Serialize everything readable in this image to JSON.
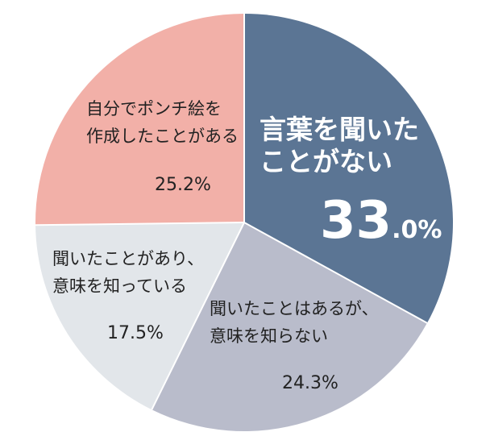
{
  "chart_data": {
    "type": "pie",
    "start_angle_deg": 0,
    "direction": "clockwise",
    "slices": [
      {
        "label_lines": [
          "言葉を聞いた",
          "ことがない"
        ],
        "value": 33.0,
        "value_main": "33",
        "value_decimal": ".0%",
        "color": "#5b7594",
        "text_color": "#ffffff"
      },
      {
        "label_lines": [
          "聞いたことはあるが、",
          "意味を知らない"
        ],
        "value": 24.3,
        "value_text": "24.3%",
        "color": "#b9bccb",
        "text_color": "#222222"
      },
      {
        "label_lines": [
          "聞いたことがあり、",
          "意味を知っている"
        ],
        "value": 17.5,
        "value_text": "17.5%",
        "color": "#e2e6ea",
        "text_color": "#222222"
      },
      {
        "label_lines": [
          "自分でポンチ絵を",
          "作成したことがある"
        ],
        "value": 25.2,
        "value_text": "25.2%",
        "color": "#f2b0a8",
        "text_color": "#222222"
      }
    ],
    "legend": "none"
  }
}
